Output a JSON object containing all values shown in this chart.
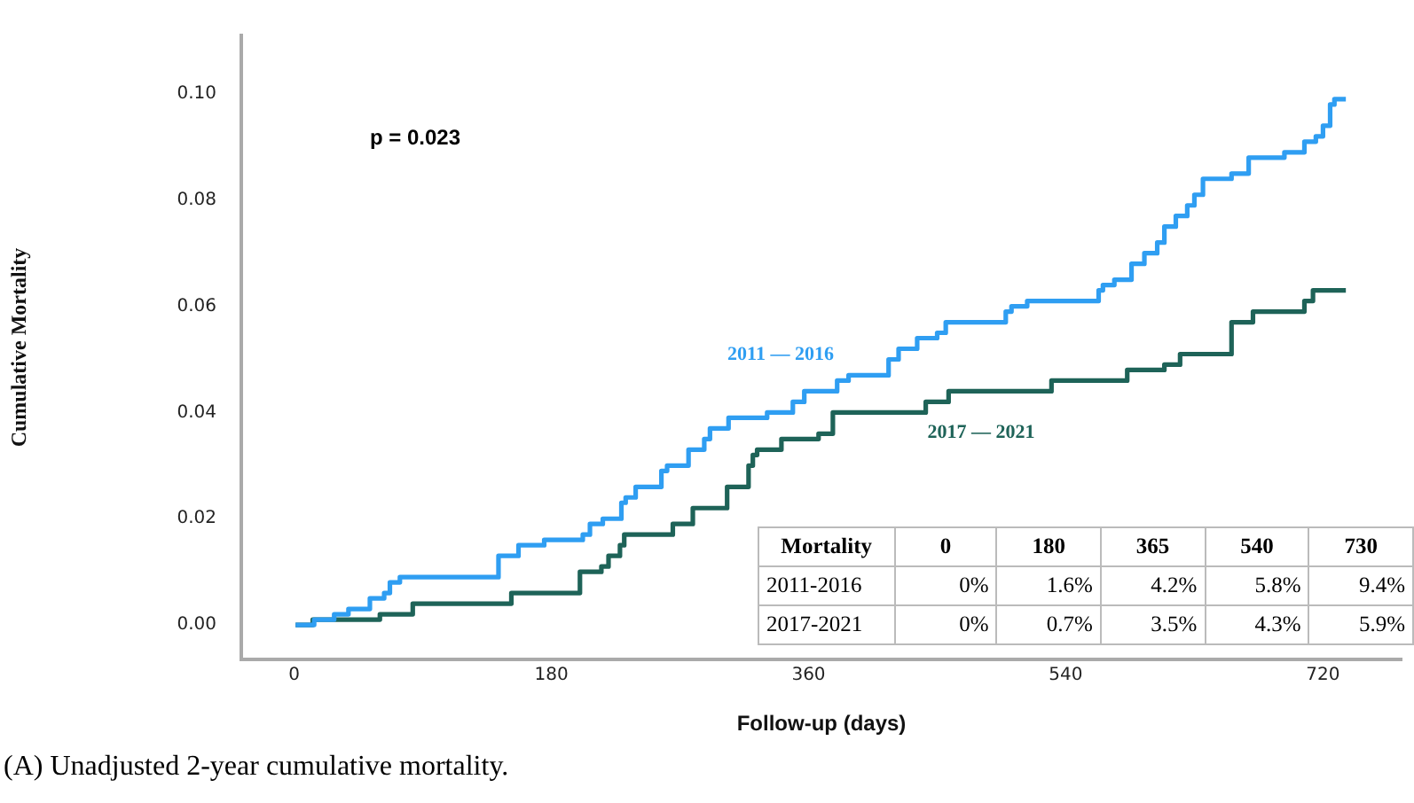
{
  "chart_data": [
    {
      "type": "step",
      "xlabel": "Follow-up (days)",
      "ylabel": "Cumulative Mortality",
      "xlim": [
        -37,
        775
      ],
      "ylim": [
        -0.0065,
        0.111
      ],
      "xticks": [
        0,
        180,
        360,
        540,
        720
      ],
      "yticks": [
        {
          "value": 0,
          "label": "0.00"
        },
        {
          "value": 0.02,
          "label": "0.02"
        },
        {
          "value": 0.04,
          "label": "0.04"
        },
        {
          "value": 0.06,
          "label": "0.06"
        },
        {
          "value": 0.08,
          "label": "0.08"
        },
        {
          "value": 0.1,
          "label": "0.10"
        }
      ],
      "grid": false,
      "legend": false,
      "marker": "none",
      "line_style": "solid",
      "annotations": [
        "p = 0.023",
        "(A) Unadjusted 2-year cumulative mortality."
      ],
      "series": [
        {
          "name": "2011 — 2016",
          "color": "#2f9ef2",
          "x": [
            1,
            14,
            28,
            38,
            53,
            63,
            67,
            74,
            143,
            157,
            175,
            202,
            207,
            216,
            229,
            232,
            239,
            257,
            261,
            276,
            287,
            291,
            304,
            331,
            349,
            357,
            380,
            388,
            416,
            423,
            436,
            450,
            456,
            498,
            502,
            513,
            563,
            566,
            574,
            586,
            595,
            604,
            609,
            617,
            625,
            630,
            636,
            656,
            668,
            693,
            707,
            715,
            720,
            725,
            728,
            736
          ],
          "values": [
            0,
            0.001,
            0.002,
            0.003,
            0.005,
            0.006,
            0.008,
            0.009,
            0.013,
            0.015,
            0.016,
            0.017,
            0.019,
            0.02,
            0.023,
            0.024,
            0.026,
            0.029,
            0.03,
            0.033,
            0.035,
            0.037,
            0.039,
            0.04,
            0.042,
            0.044,
            0.046,
            0.047,
            0.05,
            0.052,
            0.054,
            0.055,
            0.057,
            0.059,
            0.06,
            0.061,
            0.063,
            0.064,
            0.065,
            0.068,
            0.07,
            0.072,
            0.075,
            0.077,
            0.079,
            0.081,
            0.084,
            0.085,
            0.088,
            0.089,
            0.091,
            0.092,
            0.094,
            0.098,
            0.099,
            0.099
          ]
        },
        {
          "name": "2017 — 2021",
          "color": "#1e6358",
          "x": [
            1,
            13,
            60,
            83,
            152,
            200,
            215,
            220,
            228,
            231,
            265,
            279,
            303,
            318,
            321,
            324,
            341,
            367,
            377,
            442,
            458,
            530,
            583,
            609,
            620,
            656,
            671,
            707,
            713,
            736
          ],
          "values": [
            0,
            0.001,
            0.002,
            0.004,
            0.006,
            0.01,
            0.011,
            0.013,
            0.015,
            0.017,
            0.019,
            0.022,
            0.026,
            0.03,
            0.032,
            0.033,
            0.035,
            0.036,
            0.04,
            0.042,
            0.044,
            0.046,
            0.048,
            0.049,
            0.051,
            0.057,
            0.059,
            0.061,
            0.063,
            0.063
          ]
        }
      ]
    },
    {
      "type": "other",
      "xlabel": "Mortality",
      "categories": [
        "0",
        "180",
        "365",
        "540",
        "730"
      ],
      "data_labels": true,
      "series": [
        {
          "name": "2011-2016",
          "values": [
            0,
            1.6,
            4.2,
            5.8,
            9.4
          ],
          "value_labels": [
            "0%",
            "1.6%",
            "4.2%",
            "5.8%",
            "9.4%"
          ]
        },
        {
          "name": "2017-2021",
          "values": [
            0,
            0.7,
            3.5,
            4.3,
            5.9
          ],
          "value_labels": [
            "0%",
            "0.7%",
            "3.5%",
            "4.3%",
            "5.9%"
          ]
        }
      ]
    }
  ]
}
